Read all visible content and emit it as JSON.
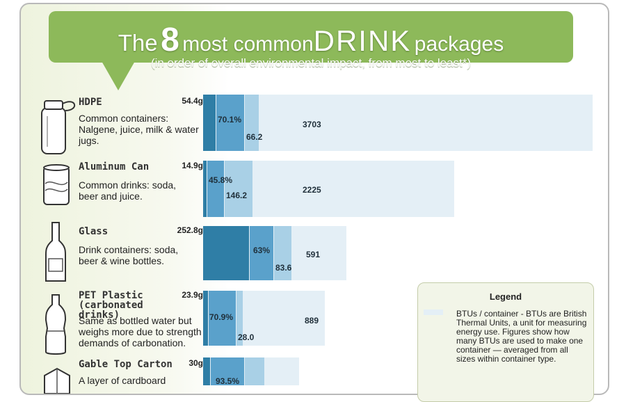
{
  "title": {
    "prefix": "The",
    "number": "8",
    "middle": "most common",
    "highlight": "DRINK",
    "suffix": "packages",
    "subtitle": "(in order of overall environmental impact, from most to least*)"
  },
  "legend": {
    "title": "Legend",
    "btu_text": "BTUs / container - BTUs are British Thermal Units, a unit for measuring energy use. Figures show how many BTUs are used to make one container — averaged from all sizes within container type."
  },
  "colors": {
    "weight": "#2f7ea6",
    "percent": "#5aa1cb",
    "third": "#a9d0e6",
    "btu": "#e4eff6",
    "banner": "#8db95a"
  },
  "chart_data": {
    "type": "bar",
    "categories": [
      "HDPE",
      "Aluminum Can",
      "Glass",
      "PET Plastic (carbonated drinks)",
      "Gable Top Carton"
    ],
    "series": [
      {
        "values": [
          "54.4g",
          "14.9g",
          "252.8g",
          "23.9g",
          "30g"
        ]
      },
      {
        "values": [
          "70.1%",
          "45.8%",
          "63%",
          "70.9%",
          "93.5%"
        ]
      },
      {
        "values": [
          "66.2",
          "146.2",
          "83.6",
          "28.0",
          ""
        ]
      },
      {
        "name": "BTUs / container",
        "values": [
          3703,
          2225,
          591,
          889,
          null
        ]
      }
    ]
  },
  "packages": [
    {
      "name": "HDPE",
      "desc": "Common containers: Nalgene, juice, milk & water jugs.",
      "icon": "hdpe-bottle-icon",
      "weight": "54.4g",
      "percent": "70.1%",
      "third": "66.2",
      "btu": "3703"
    },
    {
      "name": "Aluminum Can",
      "desc": "Common drinks: soda, beer and juice.",
      "icon": "aluminum-can-icon",
      "weight": "14.9g",
      "percent": "45.8%",
      "third": "146.2",
      "btu": "2225"
    },
    {
      "name": "Glass",
      "desc": "Drink containers: soda, beer & wine bottles.",
      "icon": "glass-bottle-icon",
      "weight": "252.8g",
      "percent": "63%",
      "third": "83.6",
      "btu": "591"
    },
    {
      "name": "PET Plastic (carbonated drinks)",
      "desc": "Same as bottled water but weighs more due to strength demands of carbonation.",
      "icon": "pet-bottle-icon",
      "weight": "23.9g",
      "percent": "70.9%",
      "third": "28.0",
      "btu": "889"
    },
    {
      "name": "Gable Top Carton",
      "desc": "A layer of cardboard",
      "icon": "carton-icon",
      "weight": "30g",
      "percent": "93.5%",
      "third": "",
      "btu": ""
    }
  ]
}
